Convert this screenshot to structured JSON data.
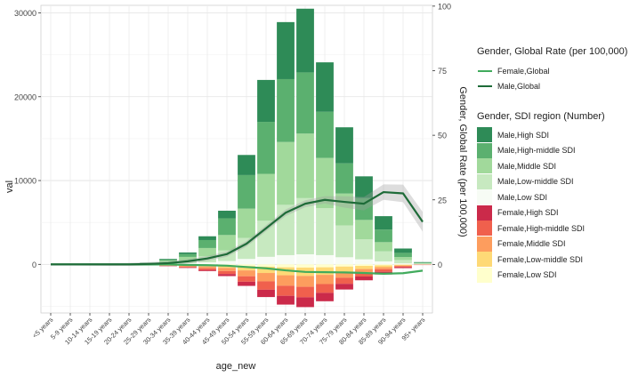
{
  "chart_data": {
    "type": "bar",
    "xlabel": "age_new",
    "ylabel": "val",
    "y2label": "Gender, Global Rate (per 100,000)",
    "ylim": [
      -5800,
      30900
    ],
    "y2lim": [
      -18.8,
      100.3
    ],
    "yticks": [
      0,
      10000,
      20000,
      30000
    ],
    "yticklabels": [
      "0",
      "10000",
      "20000",
      "30000"
    ],
    "y2ticks": [
      0,
      25,
      50,
      75,
      100
    ],
    "y2ticklabels": [
      "0",
      "25",
      "50",
      "75",
      "100"
    ],
    "categories": [
      "<5 years",
      "5-9 years",
      "10-14 years",
      "15-19 years",
      "20-24 years",
      "25-29 years",
      "30-34 years",
      "35-39 years",
      "40-44 years",
      "45-49 years",
      "50-54 years",
      "55-59 years",
      "60-64 years",
      "65-69 years",
      "70-74 years",
      "75-79 years",
      "80-84 years",
      "85-89 years",
      "90-94 years",
      "95+ years"
    ],
    "male_series": [
      {
        "name": "Male,Low SDI",
        "color": "#f7fcf5",
        "values": [
          0,
          0,
          0,
          0,
          5,
          20,
          60,
          120,
          250,
          400,
          650,
          900,
          1100,
          1200,
          1100,
          850,
          600,
          350,
          120,
          30
        ]
      },
      {
        "name": "Male,Low-middle SDI",
        "color": "#c7e9c0",
        "values": [
          0,
          0,
          0,
          0,
          10,
          40,
          150,
          320,
          700,
          1250,
          2500,
          4300,
          6000,
          6700,
          5600,
          3800,
          2400,
          1200,
          400,
          70
        ]
      },
      {
        "name": "Male,Middle SDI",
        "color": "#a1d99b",
        "values": [
          0,
          0,
          0,
          0,
          15,
          60,
          220,
          450,
          1000,
          1850,
          3500,
          5600,
          7500,
          7700,
          6000,
          3800,
          2300,
          1100,
          350,
          50
        ]
      },
      {
        "name": "Male,High-middle SDI",
        "color": "#5bb06f",
        "values": [
          0,
          0,
          0,
          0,
          10,
          40,
          140,
          330,
          950,
          2000,
          4000,
          6200,
          7500,
          7300,
          5500,
          3600,
          2600,
          1500,
          500,
          60
        ]
      },
      {
        "name": "Male,High SDI",
        "color": "#2e8b57",
        "values": [
          0,
          0,
          0,
          0,
          5,
          20,
          80,
          200,
          450,
          900,
          2400,
          5000,
          6800,
          7600,
          5900,
          4300,
          2600,
          1600,
          520,
          60
        ]
      }
    ],
    "female_series": [
      {
        "name": "Female,Low SDI",
        "color": "#ffffcc",
        "values": [
          0,
          0,
          0,
          0,
          -5,
          -10,
          -30,
          -50,
          -80,
          -120,
          -200,
          -280,
          -350,
          -380,
          -350,
          -260,
          -180,
          -120,
          -50,
          -10
        ]
      },
      {
        "name": "Female,Low-middle SDI",
        "color": "#fed976",
        "values": [
          0,
          0,
          0,
          0,
          -10,
          -25,
          -60,
          -110,
          -180,
          -300,
          -520,
          -750,
          -950,
          -1000,
          -900,
          -620,
          -380,
          -220,
          -80,
          -15
        ]
      },
      {
        "name": "Female,Middle SDI",
        "color": "#fd9d5e",
        "values": [
          0,
          0,
          0,
          0,
          -10,
          -25,
          -70,
          -120,
          -220,
          -380,
          -700,
          -1000,
          -1250,
          -1300,
          -1100,
          -720,
          -420,
          -250,
          -90,
          -15
        ]
      },
      {
        "name": "Female,High-middle SDI",
        "color": "#f0604d",
        "values": [
          0,
          0,
          0,
          0,
          -5,
          -15,
          -40,
          -90,
          -190,
          -350,
          -650,
          -1000,
          -1200,
          -1250,
          -1050,
          -720,
          -470,
          -300,
          -110,
          -20
        ]
      },
      {
        "name": "Female,High SDI",
        "color": "#cb2a4a",
        "values": [
          0,
          0,
          0,
          0,
          -5,
          -10,
          -30,
          -60,
          -130,
          -250,
          -500,
          -870,
          -1050,
          -1170,
          -1000,
          -680,
          -450,
          -310,
          -120,
          -20
        ]
      }
    ],
    "lines": [
      {
        "name": "Female,Global",
        "color": "#41ab5d",
        "values": [
          0,
          0,
          0,
          0,
          0,
          0,
          0,
          -0.2,
          -0.3,
          -0.5,
          -1,
          -1.5,
          -2.3,
          -2.9,
          -3,
          -3.1,
          -3.3,
          -3.6,
          -3.4,
          -2.4
        ]
      },
      {
        "name": "Male,Global",
        "color": "#1e6b38",
        "values": [
          0,
          0,
          0,
          0,
          0,
          0.2,
          0.5,
          1.2,
          2.3,
          4,
          8,
          14,
          20,
          23.5,
          25,
          24.2,
          23.5,
          28,
          27.5,
          16.5
        ]
      }
    ],
    "legend_title_lines": "Gender, Global Rate (per 100,000)",
    "legend_title_bars": "Gender, SDI region (Number)",
    "legend_lines": [
      {
        "label": "Female,Global",
        "color": "#41ab5d"
      },
      {
        "label": "Male,Global",
        "color": "#1e6b38"
      }
    ],
    "legend_bars": [
      {
        "label": "Male,High SDI",
        "color": "#2e8b57"
      },
      {
        "label": "Male,High-middle SDI",
        "color": "#5bb06f"
      },
      {
        "label": "Male,Middle SDI",
        "color": "#a1d99b"
      },
      {
        "label": "Male,Low-middle SDI",
        "color": "#c7e9c0"
      },
      {
        "label": "Male,Low SDI",
        "color": "#f7fcf5"
      },
      {
        "label": "Female,High SDI",
        "color": "#cb2a4a"
      },
      {
        "label": "Female,High-middle SDI",
        "color": "#f0604d"
      },
      {
        "label": "Female,Middle SDI",
        "color": "#fd9d5e"
      },
      {
        "label": "Female,Low-middle SDI",
        "color": "#fed976"
      },
      {
        "label": "Female,Low SDI",
        "color": "#ffffcc"
      }
    ],
    "grid": true,
    "legend_position": "right"
  }
}
